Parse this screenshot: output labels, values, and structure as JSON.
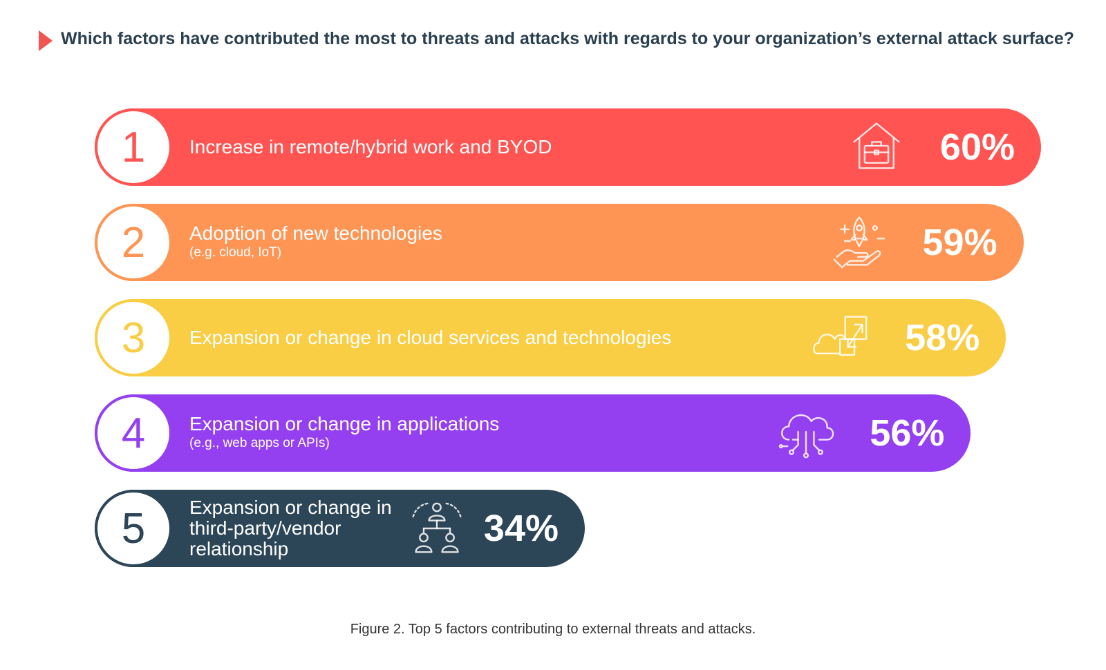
{
  "question": "Which factors have contributed the most to threats and attacks with regards to your organization’s external attack surface?",
  "chart_data": {
    "type": "bar",
    "orientation": "horizontal",
    "title": "Which factors have contributed the most to threats and attacks with regards to your organization’s external attack surface?",
    "caption": "Figure 2. Top 5 factors contributing to external threats and attacks.",
    "unit": "%",
    "items": [
      {
        "rank": "1",
        "label": "Increase in remote/hybrid work and BYOD",
        "sub": "",
        "value": 60,
        "value_label": "60%",
        "color": "#ff5452",
        "icon": "home-briefcase-icon"
      },
      {
        "rank": "2",
        "label": "Adoption of new technologies",
        "sub": "(e.g. cloud, IoT)",
        "value": 59,
        "value_label": "59%",
        "color": "#fe9555",
        "icon": "rocket-hand-icon"
      },
      {
        "rank": "3",
        "label": "Expansion or change in cloud services and technologies",
        "sub": "",
        "value": 58,
        "value_label": "58%",
        "color": "#f9cd44",
        "icon": "cloud-expand-icon"
      },
      {
        "rank": "4",
        "label": "Expansion or change in applications",
        "sub": "(e.g., web apps or APIs)",
        "value": 56,
        "value_label": "56%",
        "color": "#9440f1",
        "icon": "cloud-network-icon"
      },
      {
        "rank": "5",
        "label": "Expansion or change in third-party/vendor relationship",
        "sub": "",
        "value": 34,
        "value_label": "34%",
        "color": "#2c4557",
        "icon": "vendor-network-icon"
      }
    ]
  }
}
